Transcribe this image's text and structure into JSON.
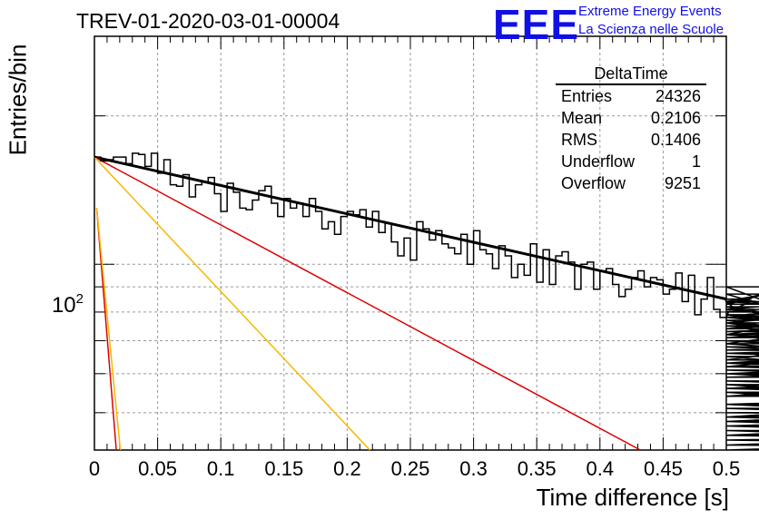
{
  "header": {
    "run_title": "TREV-01-2020-03-01-00004",
    "logo_text": "EEE",
    "logo_line1": "Extreme Energy Events",
    "logo_line2": "La Scienza nelle Scuole",
    "logo_color": "#1010e6"
  },
  "stats_box": {
    "title": "DeltaTime",
    "rows": [
      {
        "label": "Entries",
        "value": "24326"
      },
      {
        "label": "Mean",
        "value": "0.2106"
      },
      {
        "label": "RMS",
        "value": "0.1406"
      },
      {
        "label": "Underflow",
        "value": "1"
      },
      {
        "label": "Overflow",
        "value": "9251"
      }
    ]
  },
  "chart_data": {
    "type": "line",
    "title": "TREV-01-2020-03-01-00004",
    "xlabel": "Time difference [s]",
    "ylabel": "Entries/bin",
    "xlim": [
      0,
      0.5
    ],
    "ylim": [
      42,
      290
    ],
    "yscale": "log",
    "grid": true,
    "x_ticks": [
      "0",
      "0.05",
      "0.1",
      "0.15",
      "0.2",
      "0.25",
      "0.3",
      "0.35",
      "0.4",
      "0.45",
      "0.5"
    ],
    "y_tick_label": "10^2",
    "histogram": {
      "bin_width": 0.005,
      "values": [
        165,
        162,
        163,
        165,
        165,
        160,
        168,
        167,
        158,
        168,
        153,
        163,
        145,
        144,
        152,
        137,
        145,
        147,
        150,
        139,
        128,
        146,
        140,
        130,
        129,
        135,
        141,
        144,
        133,
        125,
        136,
        130,
        133,
        125,
        136,
        128,
        118,
        122,
        115,
        125,
        128,
        126,
        129,
        119,
        128,
        116,
        121,
        111,
        104,
        113,
        102,
        122,
        118,
        112,
        117,
        110,
        108,
        105,
        115,
        100,
        117,
        107,
        105,
        98,
        109,
        104,
        94,
        100,
        95,
        110,
        92,
        107,
        91,
        104,
        106,
        101,
        89,
        100,
        101,
        89,
        97,
        98,
        91,
        86,
        89,
        94,
        97,
        90,
        94,
        93,
        87,
        89,
        96,
        84,
        95,
        79,
        85,
        94,
        81,
        78,
        78,
        84,
        80,
        83,
        85,
        84,
        87,
        82,
        78,
        81,
        83,
        90,
        79,
        76,
        72,
        78,
        76,
        76,
        80,
        84,
        81,
        76,
        82,
        74,
        79,
        76,
        72,
        72,
        75,
        69,
        78,
        72,
        73,
        76,
        71,
        75,
        72,
        67,
        67,
        70,
        66,
        64,
        63,
        68,
        64,
        76,
        77,
        63,
        67,
        66,
        69,
        62,
        63,
        70,
        63,
        63,
        66,
        62,
        59,
        62,
        72,
        60,
        56,
        62,
        59,
        60,
        54,
        54,
        60,
        65,
        54,
        63,
        58,
        54,
        55,
        56,
        54,
        57,
        49,
        57,
        55,
        56,
        52,
        56,
        61,
        56,
        54,
        55,
        50,
        50,
        51,
        52,
        48,
        51,
        47,
        51,
        50,
        49,
        52,
        45,
        48,
        55,
        45,
        42,
        46,
        41,
        45,
        52,
        50,
        49,
        45,
        43,
        48,
        43,
        42,
        45,
        44,
        47,
        41,
        40,
        41,
        39,
        44,
        40,
        41,
        39,
        38,
        46,
        39,
        38,
        37,
        40,
        38,
        35,
        38,
        36,
        35,
        36,
        34,
        35,
        33,
        34,
        35,
        34,
        32,
        33,
        31,
        32,
        32,
        34,
        34,
        32,
        31,
        32,
        31,
        33,
        33,
        30,
        30,
        31
      ]
    },
    "series": [
      {
        "name": "",
        "color": "#000000",
        "x": [
          0,
          0.5
        ],
        "values": [
          165,
          85
        ],
        "width": 3
      },
      {
        "name": "",
        "color": "#dd0000",
        "x": [
          0,
          0.432
        ],
        "values": [
          165,
          42
        ],
        "width": 1.5
      },
      {
        "name": "",
        "color": "#f5b800",
        "x": [
          0,
          0.218
        ],
        "values": [
          165,
          42
        ],
        "width": 1.5
      },
      {
        "name": "",
        "color": "#dd0000",
        "x": [
          0.0018,
          0.0173
        ],
        "values": [
          130,
          42
        ],
        "width": 1.5
      },
      {
        "name": "",
        "color": "#f5b800",
        "x": [
          0.0018,
          0.0205
        ],
        "values": [
          130,
          42
        ],
        "width": 1.5
      }
    ]
  }
}
